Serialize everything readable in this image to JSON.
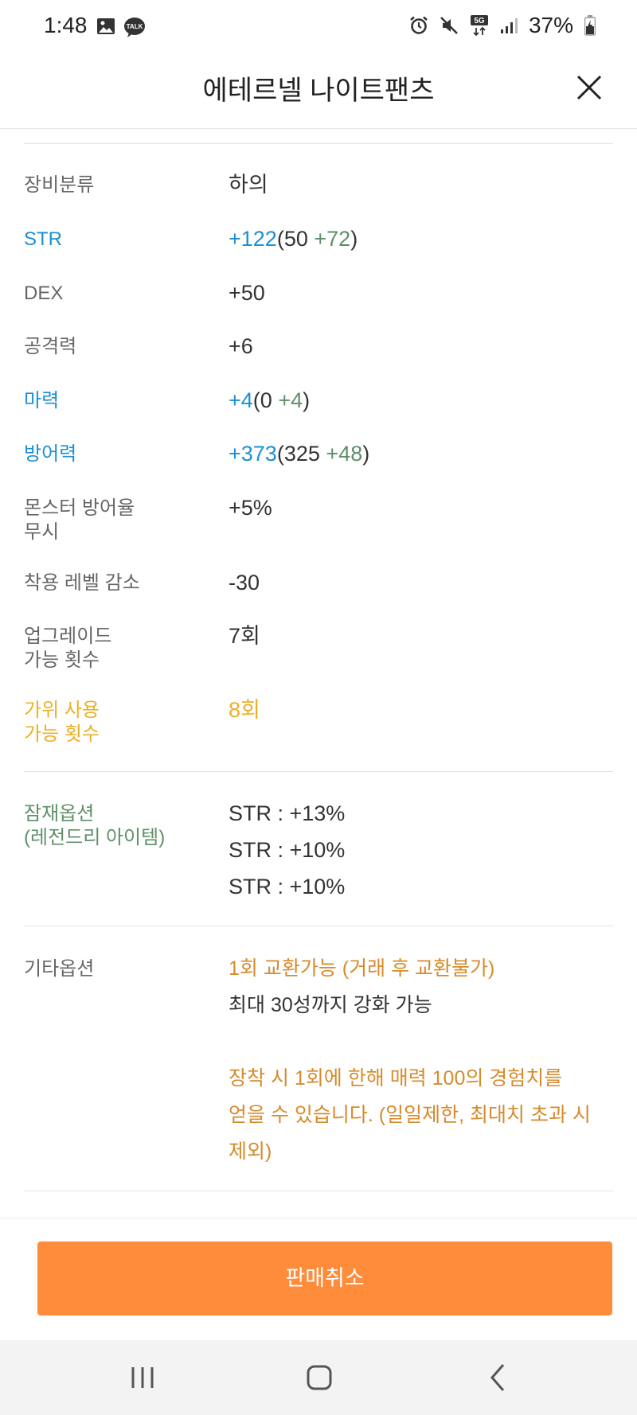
{
  "status_bar": {
    "time": "1:48",
    "battery": "37%",
    "talk_label": "TALK",
    "network_label": "5G"
  },
  "header": {
    "title": "에테르넬 나이트팬츠"
  },
  "stats": [
    {
      "label": "장비분류",
      "value": "하의"
    },
    {
      "label": "STR",
      "total": "+122",
      "base": "50",
      "bonus": "+72"
    },
    {
      "label": "DEX",
      "value": "+50"
    },
    {
      "label": "공격력",
      "value": "+6"
    },
    {
      "label": "마력",
      "total": "+4",
      "base": "0",
      "bonus": "+4"
    },
    {
      "label": "방어력",
      "total": "+373",
      "base": "325",
      "bonus": "+48"
    },
    {
      "label_line1": "몬스터 방어율",
      "label_line2": "무시",
      "value": "+5%"
    },
    {
      "label": "착용 레벨 감소",
      "value": "-30"
    },
    {
      "label_line1": "업그레이드",
      "label_line2": "가능 횟수",
      "value": "7회"
    },
    {
      "label_line1": "가위 사용",
      "label_line2": "가능 횟수",
      "value": "8회"
    }
  ],
  "potential": {
    "label_line1": "잠재옵션",
    "label_line2": "(레전드리 아이템)",
    "lines": [
      "STR : +13%",
      "STR : +10%",
      "STR : +10%"
    ]
  },
  "etc": {
    "label": "기타옵션",
    "line1": "1회 교환가능 (거래 후 교환불가)",
    "line2": "최대 30성까지 강화 가능",
    "note_line1": "장착 시 1회에 한해 매력 100의 경험치를",
    "note_line2": "얻을 수 있습니다. (일일제한, 최대치 초과 시",
    "note_line3": "제외)"
  },
  "actions": {
    "cancel_label": "판매취소"
  },
  "colors": {
    "accent_orange": "#ff8c3b",
    "stat_blue": "#1c8fd6",
    "bonus_green": "#5f8f68",
    "scissor_gold": "#ebb026",
    "etc_orange": "#d68b2c"
  }
}
